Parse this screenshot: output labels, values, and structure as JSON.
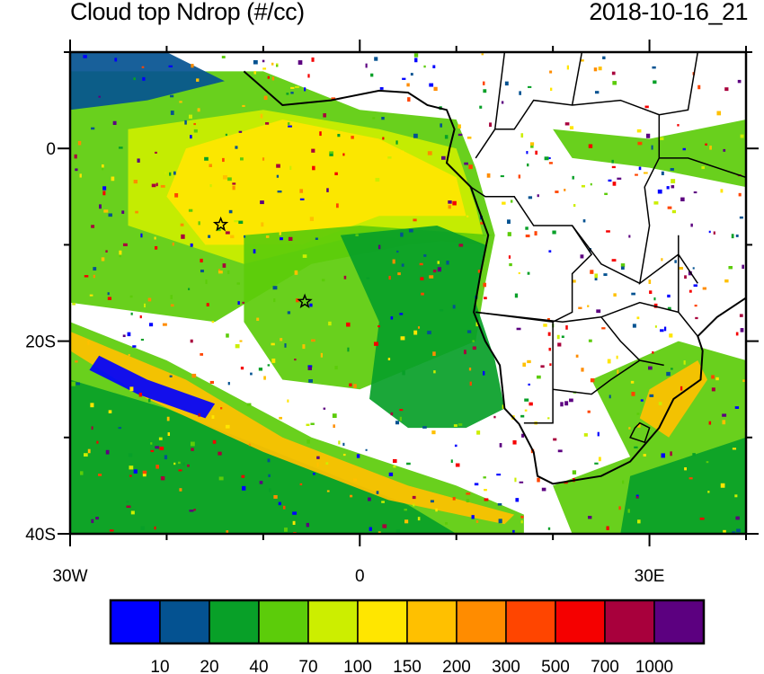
{
  "title": "Cloud top Ndrop (#/cc)",
  "timestamp": "2018-10-16_21",
  "map": {
    "projection": "cylindrical equidistant",
    "lon_range": [
      -30,
      40
    ],
    "lat_range": [
      -40,
      10
    ],
    "x_ticks": [
      {
        "value": -30,
        "label": "30W"
      },
      {
        "value": 0,
        "label": "0"
      },
      {
        "value": 30,
        "label": "30E"
      }
    ],
    "y_ticks": [
      {
        "value": 0,
        "label": "0"
      },
      {
        "value": -20,
        "label": "20S"
      },
      {
        "value": -40,
        "label": "40S"
      }
    ],
    "markers": [
      {
        "name": "star",
        "lon": -14.4,
        "lat": -7.9
      },
      {
        "name": "star",
        "lon": -5.7,
        "lat": -15.9
      }
    ],
    "background": "#ffffff",
    "coastline_color": "#000000"
  },
  "colorbar": {
    "levels": [
      "10",
      "20",
      "40",
      "70",
      "100",
      "150",
      "200",
      "300",
      "500",
      "700",
      "1000"
    ],
    "colors": [
      "#0000ff",
      "#045291",
      "#08a028",
      "#5ccc0a",
      "#ccee00",
      "#ffe600",
      "#ffc000",
      "#ff8c00",
      "#ff4500",
      "#f50000",
      "#a8003c",
      "#5c0080"
    ]
  }
}
